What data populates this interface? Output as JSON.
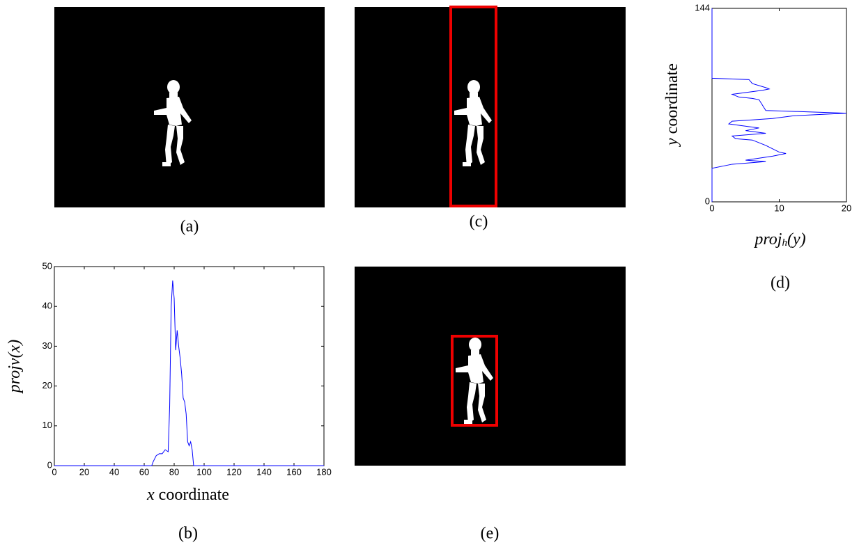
{
  "captions": {
    "a": "(a)",
    "b": "(b)",
    "c": "(c)",
    "d": "(d)",
    "e": "(e)"
  },
  "chart_data": [
    {
      "type": "line",
      "xlabel": "x coordinate",
      "ylabel": "projv(x)",
      "xlim": [
        0,
        180
      ],
      "xticks": [
        0,
        20,
        40,
        60,
        80,
        100,
        120,
        140,
        160,
        180
      ],
      "ylim": [
        0,
        50
      ],
      "yticks": [
        0,
        10,
        20,
        30,
        40,
        50
      ],
      "series": [
        {
          "color": "#0000ff",
          "x": [
            0,
            65,
            66,
            68,
            70,
            72,
            74,
            76,
            77,
            78,
            79,
            80,
            81,
            82,
            83,
            84,
            85,
            86,
            87,
            88,
            89,
            90,
            91,
            92,
            93,
            180
          ],
          "values": [
            0,
            0,
            1,
            2.5,
            3,
            3,
            4,
            3.5,
            15,
            40,
            46.5,
            42,
            29,
            34,
            30,
            27,
            23,
            17,
            16,
            13,
            6,
            5,
            6,
            4,
            0,
            0
          ]
        }
      ]
    },
    {
      "type": "line",
      "xlabel": [
        "proj",
        "h",
        "(y)"
      ],
      "ylabel": "y coordinate",
      "xlim": [
        0,
        20
      ],
      "xticks": [
        0,
        10,
        20
      ],
      "ylim": [
        0,
        144
      ],
      "yticks": [
        0,
        144
      ],
      "series": [
        {
          "color": "#0000ff",
          "x": [
            0,
            0,
            3,
            8,
            5,
            9,
            11,
            10,
            8,
            6,
            3.5,
            3,
            8,
            5,
            7,
            4,
            2.5,
            3,
            6,
            9,
            12,
            20,
            8,
            7,
            6,
            4,
            3,
            7.5,
            8.5,
            8,
            6,
            5.5,
            0,
            0
          ],
          "values": [
            0,
            25,
            28,
            30,
            31,
            34,
            36,
            37,
            42,
            46,
            47,
            49,
            51,
            53,
            55,
            57,
            58,
            60,
            61,
            62,
            64,
            66,
            68,
            76,
            77,
            78,
            80,
            83,
            84,
            85,
            88,
            91,
            92,
            144
          ]
        }
      ]
    }
  ]
}
